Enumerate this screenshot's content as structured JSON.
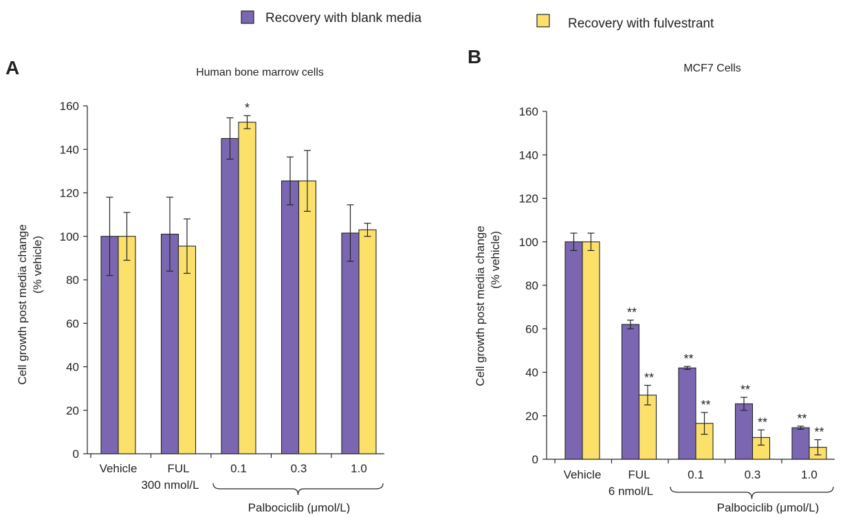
{
  "legend": {
    "items": [
      {
        "label": "Recovery with blank media",
        "color": "#7b67b1"
      },
      {
        "label": "Recovery with fulvestrant",
        "color": "#fbe06a"
      }
    ]
  },
  "chart_data": [
    {
      "type": "bar",
      "panel": "A",
      "title": "Human bone marrow cells",
      "ylabel_line1": "Cell growth post media change",
      "ylabel_line2": "(% vehicle)",
      "ylim": [
        0,
        160
      ],
      "yticks": [
        0,
        20,
        40,
        60,
        80,
        100,
        120,
        140,
        160
      ],
      "categories": [
        "Vehicle",
        "FUL",
        "0.1",
        "0.3",
        "1.0"
      ],
      "category_sublabels": [
        "",
        "300 nmol/L",
        "",
        "",
        ""
      ],
      "group_label": "Palbociclib (μmol/L)",
      "series": [
        {
          "name": "Recovery with blank media",
          "values": [
            100,
            101,
            145,
            125.5,
            101.5
          ],
          "errors": [
            18,
            17,
            9.5,
            11,
            13
          ],
          "significance": [
            "",
            "",
            "",
            "",
            ""
          ]
        },
        {
          "name": "Recovery with fulvestrant",
          "values": [
            100,
            95.5,
            152.5,
            125.5,
            103
          ],
          "errors": [
            11,
            12.5,
            3,
            14,
            3
          ],
          "significance": [
            "",
            "",
            "*",
            "",
            ""
          ]
        }
      ]
    },
    {
      "type": "bar",
      "panel": "B",
      "title": "MCF7 Cells",
      "ylabel_line1": "Cell growth post media change",
      "ylabel_line2": "(% vehicle)",
      "ylim": [
        0,
        160
      ],
      "yticks": [
        0,
        20,
        40,
        60,
        80,
        100,
        120,
        140,
        160
      ],
      "categories": [
        "Vehicle",
        "FUL",
        "0.1",
        "0.3",
        "1.0"
      ],
      "category_sublabels": [
        "",
        "6 nmol/L",
        "",
        "",
        ""
      ],
      "group_label": "Palbociclib (μmol/L)",
      "series": [
        {
          "name": "Recovery with blank media",
          "values": [
            100,
            62,
            42,
            25.5,
            14.5
          ],
          "errors": [
            4,
            2,
            0.7,
            3,
            0.7
          ],
          "significance": [
            "",
            "**",
            "**",
            "**",
            "**"
          ]
        },
        {
          "name": "Recovery with fulvestrant",
          "values": [
            100,
            29.5,
            16.5,
            10,
            5.5
          ],
          "errors": [
            4,
            4.5,
            5,
            3.5,
            3.5
          ],
          "significance": [
            "",
            "**",
            "**",
            "**",
            "**"
          ]
        }
      ]
    }
  ]
}
